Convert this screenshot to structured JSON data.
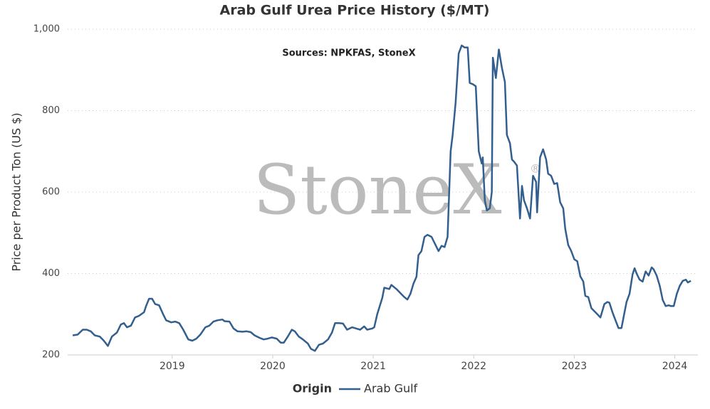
{
  "chart_data": {
    "type": "line",
    "title": "Arab Gulf Urea Price History ($/MT)",
    "annotation": "Sources: NPKFAS, StoneX",
    "watermark": "StoneX",
    "watermark_mark": "®",
    "y_label": "Price per Product Ton (US $)",
    "legend_title": "Origin",
    "grid": true,
    "xlim": [
      2017.96,
      2024.23
    ],
    "xticks": [
      2019,
      2020,
      2021,
      2022,
      2023,
      2024
    ],
    "ylim": [
      200,
      1000
    ],
    "yticks": [
      200,
      400,
      600,
      800,
      {
        "value": 1000,
        "label": "1,000"
      }
    ],
    "x": [
      2018.01,
      2018.06,
      2018.11,
      2018.15,
      2018.19,
      2018.23,
      2018.28,
      2018.32,
      2018.36,
      2018.4,
      2018.45,
      2018.49,
      2018.52,
      2018.55,
      2018.59,
      2018.63,
      2018.67,
      2018.72,
      2018.74,
      2018.77,
      2018.8,
      2018.83,
      2018.87,
      2018.91,
      2018.94,
      2018.99,
      2019.03,
      2019.07,
      2019.11,
      2019.16,
      2019.2,
      2019.24,
      2019.28,
      2019.33,
      2019.37,
      2019.41,
      2019.45,
      2019.5,
      2019.52,
      2019.57,
      2019.61,
      2019.65,
      2019.7,
      2019.74,
      2019.78,
      2019.82,
      2019.87,
      2019.91,
      2019.95,
      2019.99,
      2020.04,
      2020.08,
      2020.11,
      2020.15,
      2020.19,
      2020.22,
      2020.26,
      2020.3,
      2020.35,
      2020.38,
      2020.42,
      2020.46,
      2020.5,
      2020.55,
      2020.59,
      2020.62,
      2020.66,
      2020.7,
      2020.74,
      2020.79,
      2020.83,
      2020.87,
      2020.91,
      2020.94,
      2020.99,
      2021.01,
      2021.04,
      2021.09,
      2021.11,
      2021.16,
      2021.18,
      2021.23,
      2021.27,
      2021.31,
      2021.34,
      2021.37,
      2021.4,
      2021.43,
      2021.45,
      2021.48,
      2021.51,
      2021.54,
      2021.58,
      2021.62,
      2021.65,
      2021.68,
      2021.71,
      2021.74,
      2021.77,
      2021.79,
      2021.82,
      2021.85,
      2021.88,
      2021.91,
      2021.94,
      2021.96,
      2021.99,
      2022.02,
      2022.05,
      2022.08,
      2022.09,
      2022.11,
      2022.13,
      2022.16,
      2022.18,
      2022.19,
      2022.22,
      2022.25,
      2022.28,
      2022.31,
      2022.33,
      2022.36,
      2022.38,
      2022.4,
      2022.43,
      2022.46,
      2022.48,
      2022.5,
      2022.53,
      2022.56,
      2022.59,
      2022.62,
      2022.63,
      2022.66,
      2022.69,
      2022.72,
      2022.74,
      2022.77,
      2022.8,
      2022.83,
      2022.86,
      2022.89,
      2022.91,
      2022.94,
      2022.97,
      2023.0,
      2023.03,
      2023.06,
      2023.09,
      2023.11,
      2023.14,
      2023.17,
      2023.21,
      2023.26,
      2023.3,
      2023.33,
      2023.35,
      2023.38,
      2023.41,
      2023.44,
      2023.47,
      2023.5,
      2023.52,
      2023.55,
      2023.58,
      2023.6,
      2023.62,
      2023.65,
      2023.68,
      2023.71,
      2023.74,
      2023.77,
      2023.79,
      2023.82,
      2023.85,
      2023.88,
      2023.91,
      2023.94,
      2023.96,
      2023.99,
      2024.02,
      2024.05,
      2024.08,
      2024.11,
      2024.13,
      2024.16
    ],
    "series": [
      {
        "name": "Arab Gulf",
        "color": "#335f8f",
        "values": [
          248,
          250,
          262,
          262,
          258,
          248,
          245,
          235,
          222,
          245,
          255,
          275,
          278,
          268,
          272,
          292,
          296,
          305,
          320,
          338,
          338,
          325,
          322,
          300,
          285,
          280,
          282,
          278,
          262,
          238,
          235,
          240,
          250,
          268,
          272,
          282,
          285,
          287,
          283,
          282,
          265,
          258,
          257,
          258,
          256,
          248,
          242,
          238,
          240,
          243,
          240,
          230,
          230,
          245,
          262,
          258,
          245,
          238,
          228,
          215,
          210,
          225,
          228,
          238,
          255,
          278,
          278,
          277,
          262,
          268,
          265,
          262,
          270,
          262,
          265,
          268,
          300,
          340,
          365,
          362,
          372,
          362,
          352,
          342,
          336,
          350,
          375,
          392,
          445,
          455,
          490,
          495,
          490,
          470,
          455,
          468,
          465,
          490,
          700,
          740,
          820,
          940,
          960,
          955,
          955,
          868,
          865,
          860,
          700,
          670,
          685,
          580,
          555,
          560,
          600,
          930,
          880,
          950,
          905,
          870,
          740,
          720,
          680,
          675,
          665,
          535,
          615,
          580,
          560,
          535,
          640,
          625,
          550,
          685,
          705,
          680,
          645,
          640,
          620,
          622,
          575,
          560,
          510,
          470,
          455,
          435,
          430,
          393,
          380,
          345,
          342,
          315,
          305,
          292,
          325,
          330,
          328,
          305,
          285,
          266,
          266,
          305,
          330,
          350,
          398,
          413,
          400,
          385,
          380,
          405,
          395,
          415,
          410,
          395,
          370,
          335,
          320,
          322,
          320,
          320,
          350,
          370,
          382,
          385,
          378,
          382
        ]
      }
    ]
  }
}
